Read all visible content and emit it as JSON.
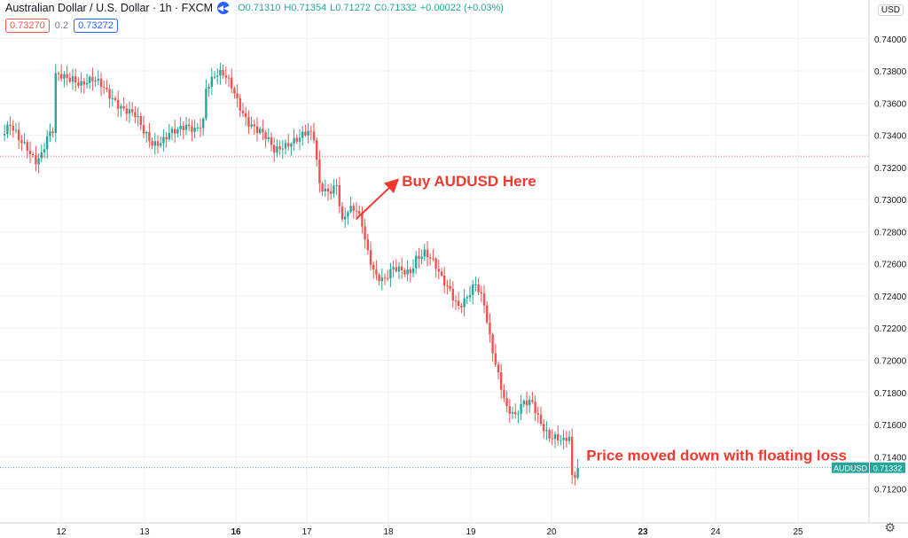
{
  "header": {
    "symbol_title": "Australian Dollar / U.S. Dollar · 1h · FXCM",
    "open": "O0.71310",
    "high": "H0.71354",
    "low": "L0.71272",
    "close": "C0.71332",
    "change": "+0.00022 (+0.03%)",
    "bid": "0.73270",
    "spread": "0.2",
    "ask": "0.73272",
    "currency": "USD"
  },
  "colors": {
    "up": "#26a69a",
    "down": "#ef5350",
    "annotation": "#f0392f",
    "grid": "#eef0f3"
  },
  "chart_data": {
    "type": "candlestick",
    "symbol": "AUDUSD",
    "last_price": "0.71332",
    "ylim": [
      0.7106,
      0.7412
    ],
    "y_ticks": [
      "0.74000",
      "0.73800",
      "0.73600",
      "0.73400",
      "0.73200",
      "0.73000",
      "0.72800",
      "0.72600",
      "0.72400",
      "0.72200",
      "0.72000",
      "0.71800",
      "0.71600",
      "0.71400",
      "0.71200"
    ],
    "x_ticks": [
      "12",
      "13",
      "16",
      "17",
      "18",
      "19",
      "20",
      "23",
      "24",
      "25"
    ],
    "x_tick_bold": [
      "16",
      "23"
    ],
    "horizontal_line": 0.7327,
    "price_path": [
      [
        0,
        0.734
      ],
      [
        3,
        0.7343
      ],
      [
        6,
        0.7336
      ],
      [
        9,
        0.7334
      ],
      [
        12,
        0.7327
      ],
      [
        14,
        0.7329
      ],
      [
        16,
        0.7337
      ],
      [
        18,
        0.734
      ],
      [
        19,
        0.7374
      ],
      [
        22,
        0.7376
      ],
      [
        25,
        0.7378
      ],
      [
        28,
        0.7374
      ],
      [
        32,
        0.7372
      ],
      [
        36,
        0.7368
      ],
      [
        40,
        0.7364
      ],
      [
        44,
        0.7356
      ],
      [
        47,
        0.735
      ],
      [
        50,
        0.734
      ],
      [
        53,
        0.7336
      ],
      [
        56,
        0.7339
      ],
      [
        59,
        0.7342
      ],
      [
        62,
        0.734
      ],
      [
        65,
        0.7343
      ],
      [
        68,
        0.7345
      ],
      [
        71,
        0.7352
      ],
      [
        72,
        0.7372
      ],
      [
        75,
        0.7376
      ],
      [
        78,
        0.7375
      ],
      [
        81,
        0.737
      ],
      [
        84,
        0.736
      ],
      [
        87,
        0.735
      ],
      [
        90,
        0.7342
      ],
      [
        93,
        0.7336
      ],
      [
        96,
        0.733
      ],
      [
        99,
        0.7336
      ],
      [
        102,
        0.7338
      ],
      [
        105,
        0.7337
      ],
      [
        108,
        0.7339
      ],
      [
        110,
        0.7337
      ],
      [
        112,
        0.731
      ],
      [
        115,
        0.7308
      ],
      [
        118,
        0.731
      ],
      [
        120,
        0.7284
      ],
      [
        122,
        0.729
      ],
      [
        125,
        0.7292
      ],
      [
        127,
        0.7286
      ],
      [
        129,
        0.727
      ],
      [
        132,
        0.7254
      ],
      [
        135,
        0.7248
      ],
      [
        138,
        0.7254
      ],
      [
        141,
        0.7256
      ],
      [
        144,
        0.7258
      ],
      [
        146,
        0.7266
      ],
      [
        149,
        0.7266
      ],
      [
        152,
        0.7258
      ],
      [
        155,
        0.725
      ],
      [
        158,
        0.7246
      ],
      [
        161,
        0.7236
      ],
      [
        164,
        0.7238
      ],
      [
        167,
        0.7244
      ],
      [
        170,
        0.7234
      ],
      [
        172,
        0.7216
      ],
      [
        175,
        0.7194
      ],
      [
        178,
        0.717
      ],
      [
        181,
        0.7162
      ],
      [
        184,
        0.7172
      ],
      [
        187,
        0.7176
      ],
      [
        190,
        0.7164
      ],
      [
        193,
        0.7152
      ],
      [
        196,
        0.7148
      ],
      [
        198,
        0.7147
      ],
      [
        200,
        0.7152
      ],
      [
        201,
        0.7128
      ],
      [
        202,
        0.7131
      ],
      [
        203,
        0.7133
      ]
    ],
    "annotations": [
      {
        "text": "Buy AUDUSD Here",
        "at": [
          125,
          0.7288
        ],
        "label_at": [
          141,
          0.7305
        ]
      },
      {
        "text": "Price moved down with floating loss",
        "label_at": [
          206,
          0.7141
        ]
      }
    ]
  }
}
